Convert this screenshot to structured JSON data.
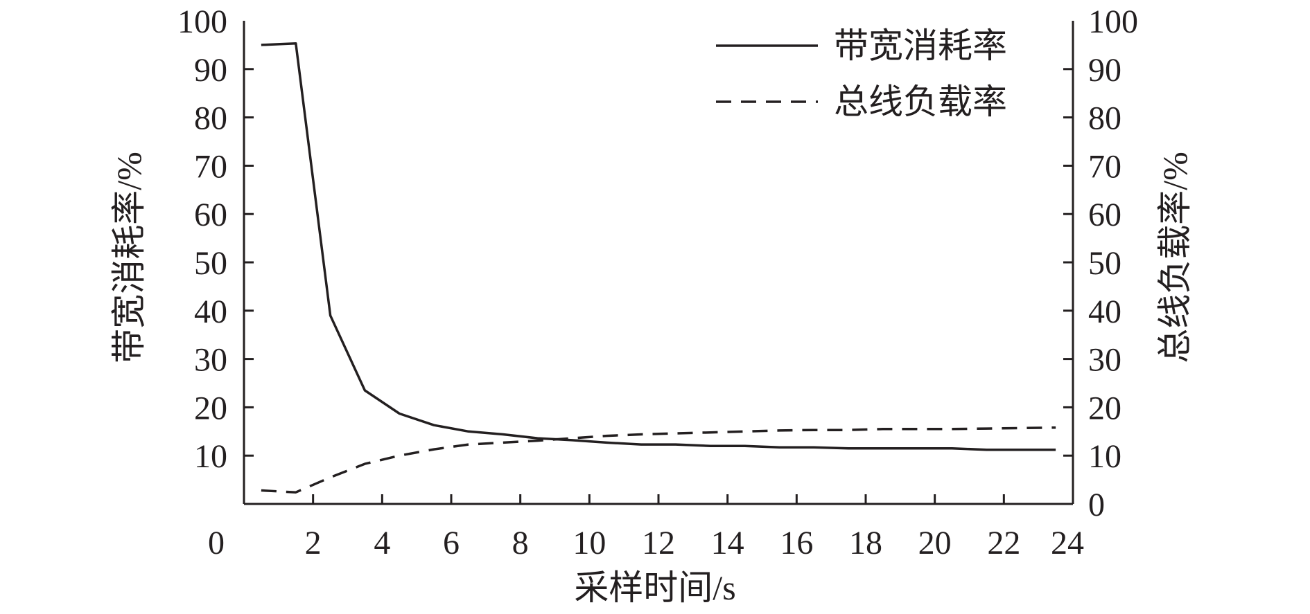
{
  "chart_data": {
    "type": "line",
    "xlabel": "采样时间/s",
    "ylabel_left": "带宽消耗率/%",
    "ylabel_right": "总线负载率/%",
    "xlim": [
      0,
      24
    ],
    "ylim": [
      0,
      100
    ],
    "x_ticks": [
      "0",
      "2",
      "4",
      "6",
      "8",
      "10",
      "12",
      "14",
      "16",
      "18",
      "20",
      "22",
      "24"
    ],
    "y_ticks_left": [
      "10",
      "20",
      "30",
      "40",
      "50",
      "60",
      "70",
      "80",
      "90",
      "100"
    ],
    "y_ticks_right": [
      "0",
      "10",
      "20",
      "30",
      "40",
      "50",
      "60",
      "70",
      "80",
      "90",
      "100"
    ],
    "legend_position": "top-right",
    "series": [
      {
        "name": "带宽消耗率",
        "style": "solid",
        "x": [
          0.5,
          1.5,
          2.5,
          3.5,
          4.5,
          5.5,
          6.5,
          7.5,
          8.5,
          9.5,
          10.5,
          11.5,
          12.5,
          13.5,
          14.5,
          15.5,
          16.5,
          17.5,
          18.5,
          19.5,
          20.5,
          21.5,
          22.5,
          23.5
        ],
        "values": [
          95,
          95.3,
          39,
          23.5,
          18.7,
          16.3,
          15,
          14.4,
          13.6,
          13.2,
          12.7,
          12.3,
          12.3,
          12,
          12,
          11.7,
          11.7,
          11.5,
          11.5,
          11.5,
          11.5,
          11.2,
          11.2,
          11.2
        ]
      },
      {
        "name": "总线负载率",
        "style": "dashed",
        "x": [
          0.5,
          1.5,
          2.5,
          3.5,
          4.5,
          5.5,
          6.5,
          7.5,
          8.5,
          9.5,
          10.5,
          11.5,
          12.5,
          13.5,
          14.5,
          15.5,
          16.5,
          17.5,
          18.5,
          19.5,
          20.5,
          21.5,
          22.5,
          23.5
        ],
        "values": [
          2.8,
          2.4,
          5.5,
          8.3,
          10,
          11.3,
          12.3,
          12.7,
          13.1,
          13.6,
          14.1,
          14.4,
          14.6,
          14.8,
          15,
          15.2,
          15.3,
          15.3,
          15.5,
          15.5,
          15.5,
          15.6,
          15.7,
          15.8
        ]
      }
    ],
    "colors": {
      "line": "#231f20",
      "background": "#ffffff"
    }
  }
}
